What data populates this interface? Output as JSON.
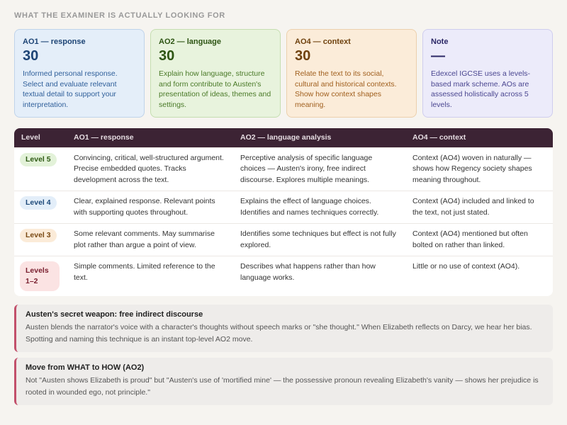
{
  "heading": "WHAT THE EXAMINER IS ACTUALLY LOOKING FOR",
  "cards": [
    {
      "title": "AO1 — response",
      "value": 30,
      "text": "Informed personal response. Select and evaluate relevant textual detail to support your interpretation."
    },
    {
      "title": "AO2 — language",
      "value": 30,
      "text": "Explain how language, structure and form contribute to Austen's presentation of ideas, themes and settings."
    },
    {
      "title": "AO4 — context",
      "value": 30,
      "text": "Relate the text to its social, cultural and historical contexts. Show how context shapes meaning."
    },
    {
      "title": "Note",
      "value": "—",
      "text": "Edexcel IGCSE uses a levels-based mark scheme. AOs are assessed holistically across 5 levels."
    }
  ],
  "table": {
    "header": [
      "Level",
      "AO1 — response",
      "AO2 — language analysis",
      "AO4 — context"
    ],
    "rows": [
      [
        "Level 5",
        "Convincing, critical, well-structured argument. Precise embedded quotes. Tracks development across the text.",
        "Perceptive analysis of specific language choices — Austen's irony, free indirect discourse. Explores multiple meanings.",
        "Context (AO4) woven in naturally — shows how Regency society shapes meaning throughout."
      ],
      [
        "Level 4",
        "Clear, explained response. Relevant points with supporting quotes throughout.",
        "Explains the effect of language choices. Identifies and names techniques correctly.",
        "Context (AO4) included and linked to the text, not just stated."
      ],
      [
        "Level 3",
        "Some relevant comments. May summarise plot rather than argue a point of view.",
        "Identifies some techniques but effect is not fully explored.",
        "Context (AO4) mentioned but often bolted on rather than linked."
      ],
      [
        "Levels 1–2",
        "Simple comments. Limited reference to the text.",
        "Describes what happens rather than how language works.",
        "Little or no use of context (AO4)."
      ]
    ]
  },
  "callouts": [
    {
      "title": "Austen's secret weapon: free indirect discourse",
      "text": "Austen blends the narrator's voice with a character's thoughts without speech marks or \"she thought.\" When Elizabeth reflects on Darcy, we hear her bias. Spotting and naming this technique is an instant top-level AO2 move."
    },
    {
      "title": "Move from WHAT to HOW (AO2)",
      "text": "Not \"Austen shows Elizabeth is proud\" but \"Austen's use of 'mortified mine' — the possessive pronoun revealing Elizabeth's vanity — shows her prejudice is rooted in wounded ego, not principle.\""
    }
  ]
}
